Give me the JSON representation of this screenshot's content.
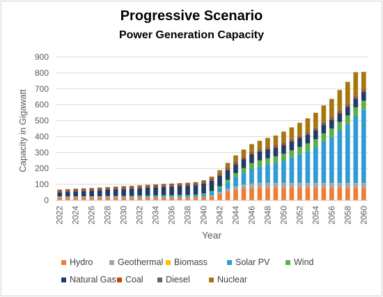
{
  "header": {
    "title": "Progressive Scenario",
    "subtitle": "Power Generation Capacity"
  },
  "chart_data": {
    "type": "bar",
    "stacked": true,
    "title": "Progressive Scenario",
    "subtitle": "Power Generation Capacity",
    "xlabel": "Year",
    "ylabel": "Capacity in Gigawatt",
    "ylim": [
      0,
      900
    ],
    "yticks": [
      0,
      100,
      200,
      300,
      400,
      500,
      600,
      700,
      800,
      900
    ],
    "grid": true,
    "legend_position": "bottom",
    "categories": [
      "2022",
      "2023",
      "2024",
      "2025",
      "2026",
      "2027",
      "2028",
      "2029",
      "2030",
      "2031",
      "2032",
      "2033",
      "2034",
      "2035",
      "2036",
      "2037",
      "2038",
      "2039",
      "2040",
      "2041",
      "2042",
      "2043",
      "2044",
      "2045",
      "2046",
      "2047",
      "2048",
      "2049",
      "2050",
      "2051",
      "2052",
      "2053",
      "2054",
      "2055",
      "2056",
      "2057",
      "2058",
      "2059",
      "2060"
    ],
    "xtick_labels": [
      "2022",
      "2024",
      "2026",
      "2028",
      "2030",
      "2032",
      "2034",
      "2036",
      "2038",
      "2040",
      "2042",
      "2044",
      "2046",
      "2048",
      "2050",
      "2052",
      "2054",
      "2056",
      "2058",
      "2060"
    ],
    "series": [
      {
        "name": "Hydro",
        "color": "#ED7D31",
        "values": [
          18,
          18,
          18,
          18,
          18,
          18,
          18,
          18,
          18,
          18,
          18,
          18,
          18,
          18,
          18,
          18,
          18,
          18,
          20,
          25,
          40,
          55,
          65,
          72,
          75,
          77,
          78,
          78,
          78,
          78,
          78,
          78,
          78,
          78,
          78,
          78,
          78,
          78,
          78
        ]
      },
      {
        "name": "Geothermal",
        "color": "#A5A5A5",
        "values": [
          2,
          2,
          2,
          2,
          2,
          2,
          2,
          2,
          2,
          2,
          2,
          2,
          2,
          2,
          2,
          2,
          2,
          2,
          3,
          5,
          10,
          15,
          20,
          25,
          28,
          30,
          30,
          30,
          30,
          30,
          30,
          30,
          30,
          30,
          30,
          30,
          30,
          30,
          30
        ]
      },
      {
        "name": "Biomass",
        "color": "#FFC000",
        "values": [
          0.5,
          0.5,
          0.5,
          0.5,
          0.5,
          0.5,
          0.5,
          0.5,
          0.5,
          0.5,
          0.5,
          0.5,
          0.5,
          0.5,
          0.5,
          0.5,
          0.5,
          0.5,
          0.5,
          1,
          1,
          1,
          1,
          1,
          1,
          1,
          1,
          1,
          1,
          1,
          1,
          1,
          1,
          1,
          1,
          1,
          1,
          1,
          1
        ]
      },
      {
        "name": "Solar PV",
        "color": "#2E9BD6",
        "values": [
          3,
          3,
          4,
          4,
          4,
          5,
          5,
          5,
          6,
          6,
          7,
          8,
          8,
          9,
          9,
          10,
          10,
          11,
          15,
          20,
          25,
          40,
          60,
          75,
          95,
          105,
          115,
          125,
          140,
          160,
          180,
          200,
          225,
          260,
          290,
          330,
          370,
          420,
          460
        ]
      },
      {
        "name": "Wind",
        "color": "#5BAF45",
        "values": [
          1,
          1,
          1,
          1,
          1,
          1,
          2,
          2,
          2,
          2,
          2,
          2,
          3,
          3,
          3,
          3,
          3,
          4,
          5,
          8,
          12,
          18,
          25,
          30,
          35,
          38,
          40,
          42,
          44,
          45,
          47,
          48,
          50,
          51,
          52,
          53,
          54,
          55,
          57
        ]
      },
      {
        "name": "Natural Gas",
        "color": "#1F3C66",
        "values": [
          25,
          28,
          30,
          32,
          34,
          36,
          38,
          40,
          42,
          44,
          46,
          48,
          50,
          52,
          54,
          56,
          58,
          60,
          62,
          64,
          65,
          60,
          55,
          55,
          55,
          55,
          55,
          55,
          55,
          55,
          55,
          55,
          55,
          55,
          55,
          55,
          55,
          55,
          55
        ]
      },
      {
        "name": "Coal",
        "color": "#C0430A",
        "values": [
          8,
          8,
          8,
          8,
          8,
          8,
          8,
          8,
          8,
          8,
          8,
          8,
          8,
          8,
          8,
          8,
          8,
          8,
          8,
          8,
          8,
          8,
          8,
          8,
          8,
          8,
          8,
          8,
          8,
          8,
          8,
          8,
          8,
          8,
          8,
          8,
          8,
          8,
          8
        ]
      },
      {
        "name": "Diesel",
        "color": "#636363",
        "values": [
          8,
          8,
          8,
          8,
          8,
          8,
          8,
          8,
          8,
          8,
          8,
          8,
          8,
          8,
          8,
          8,
          8,
          8,
          8,
          8,
          8,
          8,
          8,
          8,
          8,
          8,
          8,
          8,
          8,
          8,
          8,
          8,
          8,
          8,
          8,
          8,
          8,
          8,
          8
        ]
      },
      {
        "name": "Nuclear",
        "color": "#A7770F",
        "values": [
          2,
          2,
          2,
          2,
          2,
          2,
          2,
          3,
          3,
          3,
          3,
          3,
          3,
          3,
          3,
          3,
          3,
          3,
          5,
          10,
          20,
          30,
          40,
          45,
          48,
          52,
          57,
          60,
          68,
          73,
          80,
          87,
          95,
          105,
          115,
          130,
          140,
          150,
          110
        ]
      }
    ]
  }
}
